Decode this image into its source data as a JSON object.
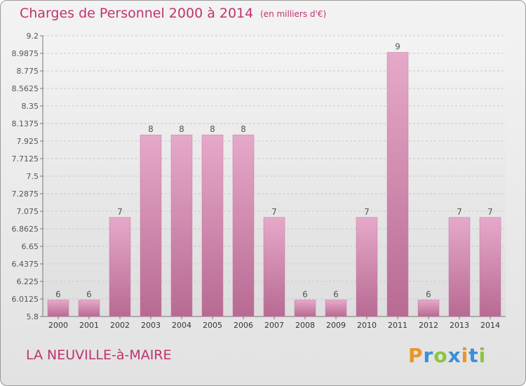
{
  "header": {
    "title": "Charges de Personnel 2000 à 2014",
    "subtitle": "(en milliers d'€)"
  },
  "footer": {
    "commune": "LA NEUVILLE-à-MAIRE",
    "brand_letters": [
      "P",
      "r",
      "o",
      "x",
      "i",
      "t",
      "i"
    ],
    "brand_colors": [
      "#e8962a",
      "#3a8fd8",
      "#8bc53f",
      "#3a8fd8",
      "#e8962a",
      "#3a8fd8",
      "#8bc53f"
    ]
  },
  "chart_data": {
    "type": "bar",
    "title": "Charges de Personnel 2000 à 2014",
    "subtitle": "(en milliers d'€)",
    "categories": [
      "2000",
      "2001",
      "2002",
      "2003",
      "2004",
      "2005",
      "2006",
      "2007",
      "2008",
      "2009",
      "2010",
      "2011",
      "2012",
      "2013",
      "2014"
    ],
    "values": [
      6,
      6,
      7,
      8,
      8,
      8,
      8,
      7,
      6,
      6,
      7,
      9,
      6,
      7,
      7
    ],
    "data_labels": [
      "6",
      "6",
      "7",
      "8",
      "8",
      "8",
      "8",
      "7",
      "6",
      "6",
      "7",
      "9",
      "6",
      "7",
      "7"
    ],
    "ylim": [
      5.8,
      9.2
    ],
    "yticks": [
      5.8,
      6.0125,
      6.225,
      6.4375,
      6.65,
      6.8625,
      7.075,
      7.2875,
      7.5,
      7.7125,
      7.925,
      8.1375,
      8.35,
      8.5625,
      8.775,
      8.9875,
      9.2
    ],
    "ytick_labels": [
      "5.8",
      "6.0125",
      "6.225",
      "6.4375",
      "6.65",
      "6.8625",
      "7.075",
      "7.2875",
      "7.5",
      "7.7125",
      "7.925",
      "8.1375",
      "8.35",
      "8.5625",
      "8.775",
      "8.9875",
      "9.2"
    ],
    "grid": true,
    "bar_color": "#d98fb6",
    "label_color": "#555555"
  }
}
